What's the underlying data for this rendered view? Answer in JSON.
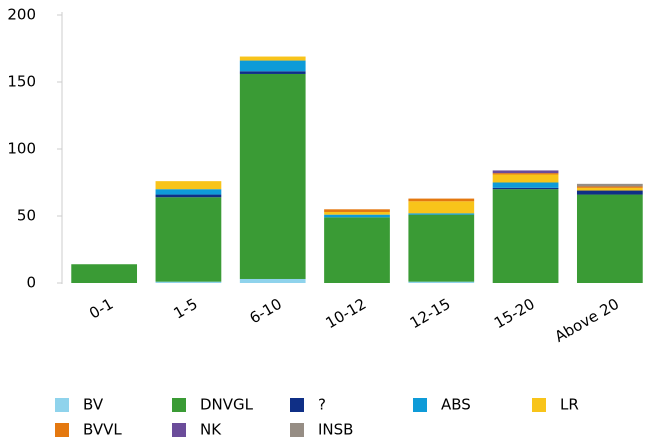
{
  "chart_data": {
    "type": "bar",
    "stacked": true,
    "categories": [
      "0-1",
      "1-5",
      "6-10",
      "10-12",
      "12-15",
      "15-20",
      "Above 20"
    ],
    "series": [
      {
        "name": "BV",
        "color": "#8fd3ec",
        "values": [
          0,
          1,
          3,
          0,
          1,
          0,
          0
        ]
      },
      {
        "name": "DNVGL",
        "color": "#3a9b35",
        "values": [
          14,
          63,
          153,
          49,
          50,
          70,
          66
        ]
      },
      {
        "name": "?",
        "color": "#0f2f86",
        "values": [
          0,
          2,
          2,
          0,
          0,
          1,
          3
        ]
      },
      {
        "name": "ABS",
        "color": "#0e9bd8",
        "values": [
          0,
          4,
          8,
          2,
          1,
          4,
          0
        ]
      },
      {
        "name": "LR",
        "color": "#f8c41a",
        "values": [
          0,
          6,
          3,
          2,
          9,
          6,
          2
        ]
      },
      {
        "name": "BVVL",
        "color": "#e4780f",
        "values": [
          0,
          0,
          0,
          2,
          2,
          1,
          1
        ]
      },
      {
        "name": "NK",
        "color": "#6b4c9a",
        "values": [
          0,
          0,
          0,
          0,
          0,
          2,
          0
        ]
      },
      {
        "name": "INSB",
        "color": "#968d84",
        "values": [
          0,
          0,
          0,
          0,
          0,
          0,
          2
        ]
      }
    ],
    "ylim": [
      0,
      200
    ],
    "yticks": [
      0,
      50,
      100,
      150,
      200
    ],
    "grid": false
  }
}
